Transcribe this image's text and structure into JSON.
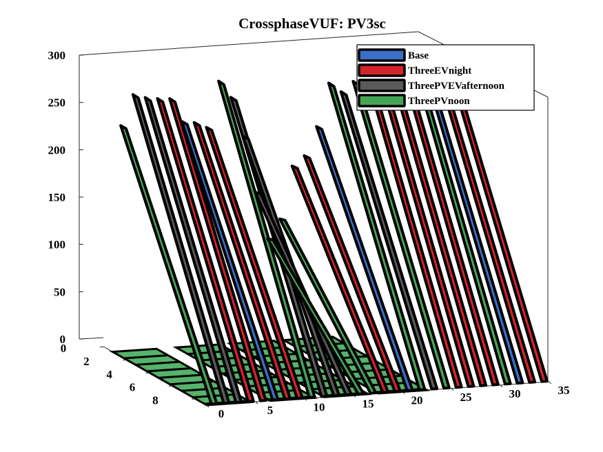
{
  "chart_data": {
    "type": "ribbon3d",
    "title": "CrossphaseVUF: PV3sc",
    "z_ticks": [
      "0",
      "50",
      "100",
      "150",
      "200",
      "250",
      "300"
    ],
    "x_ticks": [
      "0",
      "5",
      "10",
      "15",
      "20",
      "25",
      "30",
      "35"
    ],
    "y_ticks": [
      "0",
      "2",
      "4",
      "6",
      "8"
    ],
    "zlim": [
      0,
      300
    ],
    "xlim": [
      0,
      35
    ],
    "ylim": [
      0,
      9
    ],
    "legend_location": "top-right",
    "series": [
      {
        "name": "Base",
        "color": "#3a6fc4"
      },
      {
        "name": "ThreeEVnight",
        "color": "#d4242b"
      },
      {
        "name": "ThreePVEVafternoon",
        "color": "#5a5a5a"
      },
      {
        "name": "ThreePVnoon",
        "color": "#45a557"
      }
    ],
    "ribbons": [
      {
        "series": "ThreePVnoon",
        "x": 0,
        "y": 0,
        "z_top": 240
      },
      {
        "series": "ThreePVEVafternoon",
        "x": 1,
        "y": 0,
        "z_top": 272
      },
      {
        "series": "ThreePVEVafternoon",
        "x": 2,
        "y": 0,
        "z_top": 268
      },
      {
        "series": "ThreeEVnight",
        "x": 3,
        "y": 0,
        "z_top": 266
      },
      {
        "series": "ThreeEVnight",
        "x": 4,
        "y": 0,
        "z_top": 265
      },
      {
        "series": "Base",
        "x": 5,
        "y": 0,
        "z_top": 240
      },
      {
        "series": "ThreeEVnight",
        "x": 6,
        "y": 0,
        "z_top": 238
      },
      {
        "series": "ThreeEVnight",
        "x": 7,
        "y": 0,
        "z_top": 232
      },
      {
        "series": "ThreePVnoon",
        "x": 8,
        "y": 0,
        "z_top": 280
      },
      {
        "series": "ThreePVEVafternoon",
        "x": 9,
        "y": 0,
        "z_top": 262
      },
      {
        "series": "ThreePVEVafternoon",
        "x": 10,
        "y": 0,
        "z_top": 220
      },
      {
        "series": "ThreePVEVafternoon",
        "x": 11,
        "y": 0,
        "z_top": 160
      },
      {
        "series": "ThreePVnoon",
        "x": 12,
        "y": 0,
        "z_top": 110
      },
      {
        "series": "ThreePVnoon",
        "x": 13,
        "y": 0,
        "z_top": 130
      },
      {
        "series": "ThreeEVnight",
        "x": 14,
        "y": 0,
        "z_top": 185
      },
      {
        "series": "ThreeEVnight",
        "x": 15,
        "y": 0,
        "z_top": 195
      },
      {
        "series": "Base",
        "x": 16,
        "y": 0,
        "z_top": 225
      },
      {
        "series": "ThreePVnoon",
        "x": 17,
        "y": 0,
        "z_top": 270
      },
      {
        "series": "ThreePVEVafternoon",
        "x": 18,
        "y": 0,
        "z_top": 260
      },
      {
        "series": "ThreePVnoon",
        "x": 19,
        "y": 0,
        "z_top": 270
      },
      {
        "series": "ThreeEVnight",
        "x": 20,
        "y": 0,
        "z_top": 280
      },
      {
        "series": "ThreeEVnight",
        "x": 21,
        "y": 0,
        "z_top": 280
      },
      {
        "series": "ThreeEVnight",
        "x": 22,
        "y": 0,
        "z_top": 280
      },
      {
        "series": "ThreeEVnight",
        "x": 23,
        "y": 0,
        "z_top": 280
      },
      {
        "series": "ThreePVnoon",
        "x": 24,
        "y": 0,
        "z_top": 280
      },
      {
        "series": "Base",
        "x": 25,
        "y": 0,
        "z_top": 270
      },
      {
        "series": "ThreeEVnight",
        "x": 26,
        "y": 0,
        "z_top": 270
      },
      {
        "series": "ThreeEVnight",
        "x": 27,
        "y": 0,
        "z_top": 270
      }
    ]
  }
}
